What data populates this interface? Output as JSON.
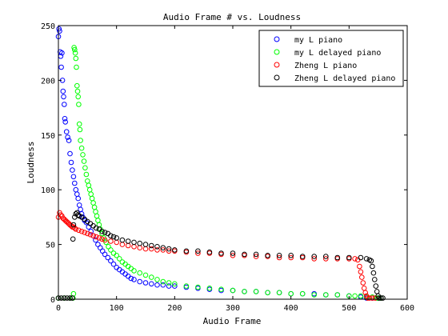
{
  "chart_data": {
    "type": "scatter",
    "title": "Audio Frame # vs. Loudness",
    "xlabel": "Audio Frame",
    "ylabel": "Loudness",
    "xlim": [
      0,
      600
    ],
    "ylim": [
      0,
      250
    ],
    "xticks": [
      0,
      100,
      200,
      300,
      400,
      500,
      600
    ],
    "yticks": [
      0,
      50,
      100,
      150,
      200,
      250
    ],
    "marker": "circle-open",
    "legend_position": "top-right",
    "series": [
      {
        "name": "my L piano",
        "color": "#0000ff",
        "points": [
          [
            0,
            240
          ],
          [
            1,
            247
          ],
          [
            2,
            245
          ],
          [
            3,
            226
          ],
          [
            4,
            222
          ],
          [
            5,
            212
          ],
          [
            6,
            225
          ],
          [
            7,
            200
          ],
          [
            8,
            190
          ],
          [
            9,
            185
          ],
          [
            10,
            178
          ],
          [
            11,
            165
          ],
          [
            12,
            162
          ],
          [
            14,
            153
          ],
          [
            16,
            148
          ],
          [
            18,
            145
          ],
          [
            20,
            133
          ],
          [
            22,
            125
          ],
          [
            24,
            118
          ],
          [
            26,
            112
          ],
          [
            28,
            106
          ],
          [
            30,
            100
          ],
          [
            32,
            96
          ],
          [
            34,
            92
          ],
          [
            36,
            86
          ],
          [
            38,
            82
          ],
          [
            40,
            78
          ],
          [
            42,
            75
          ],
          [
            45,
            72
          ],
          [
            48,
            70
          ],
          [
            52,
            66
          ],
          [
            56,
            62
          ],
          [
            60,
            58
          ],
          [
            64,
            54
          ],
          [
            68,
            50
          ],
          [
            72,
            47
          ],
          [
            76,
            44
          ],
          [
            80,
            41
          ],
          [
            85,
            38
          ],
          [
            90,
            35
          ],
          [
            95,
            32
          ],
          [
            100,
            29
          ],
          [
            105,
            27
          ],
          [
            110,
            25
          ],
          [
            115,
            23
          ],
          [
            120,
            21
          ],
          [
            125,
            19
          ],
          [
            130,
            18
          ],
          [
            140,
            16
          ],
          [
            150,
            15
          ],
          [
            160,
            14
          ],
          [
            170,
            13
          ],
          [
            180,
            13
          ],
          [
            190,
            12
          ],
          [
            200,
            12
          ],
          [
            220,
            11
          ],
          [
            240,
            10
          ],
          [
            260,
            9
          ],
          [
            280,
            8
          ],
          [
            300,
            8
          ],
          [
            320,
            7
          ],
          [
            340,
            7
          ],
          [
            360,
            6
          ],
          [
            380,
            6
          ],
          [
            400,
            5
          ],
          [
            420,
            5
          ],
          [
            440,
            5
          ],
          [
            460,
            4
          ],
          [
            480,
            4
          ],
          [
            500,
            3
          ],
          [
            520,
            2
          ],
          [
            530,
            1
          ],
          [
            540,
            1
          ],
          [
            550,
            1
          ]
        ]
      },
      {
        "name": "my L delayed piano",
        "color": "#00ff00",
        "points": [
          [
            0,
            1
          ],
          [
            10,
            1
          ],
          [
            20,
            1
          ],
          [
            25,
            1
          ],
          [
            26,
            5
          ],
          [
            27,
            230
          ],
          [
            28,
            228
          ],
          [
            29,
            225
          ],
          [
            30,
            220
          ],
          [
            31,
            212
          ],
          [
            32,
            195
          ],
          [
            33,
            190
          ],
          [
            34,
            185
          ],
          [
            35,
            178
          ],
          [
            36,
            160
          ],
          [
            37,
            155
          ],
          [
            38,
            145
          ],
          [
            40,
            138
          ],
          [
            42,
            132
          ],
          [
            44,
            126
          ],
          [
            46,
            120
          ],
          [
            48,
            114
          ],
          [
            50,
            108
          ],
          [
            52,
            104
          ],
          [
            54,
            100
          ],
          [
            56,
            96
          ],
          [
            58,
            92
          ],
          [
            60,
            88
          ],
          [
            62,
            84
          ],
          [
            64,
            80
          ],
          [
            66,
            76
          ],
          [
            68,
            72
          ],
          [
            70,
            68
          ],
          [
            72,
            64
          ],
          [
            75,
            60
          ],
          [
            78,
            56
          ],
          [
            82,
            52
          ],
          [
            86,
            48
          ],
          [
            90,
            45
          ],
          [
            95,
            42
          ],
          [
            100,
            40
          ],
          [
            105,
            37
          ],
          [
            110,
            34
          ],
          [
            115,
            32
          ],
          [
            120,
            30
          ],
          [
            125,
            28
          ],
          [
            130,
            26
          ],
          [
            140,
            24
          ],
          [
            150,
            22
          ],
          [
            160,
            20
          ],
          [
            170,
            18
          ],
          [
            180,
            16
          ],
          [
            190,
            15
          ],
          [
            200,
            14
          ],
          [
            220,
            12
          ],
          [
            240,
            11
          ],
          [
            260,
            10
          ],
          [
            280,
            9
          ],
          [
            300,
            8
          ],
          [
            320,
            7
          ],
          [
            340,
            7
          ],
          [
            360,
            6
          ],
          [
            380,
            6
          ],
          [
            400,
            5
          ],
          [
            420,
            5
          ],
          [
            440,
            4
          ],
          [
            460,
            4
          ],
          [
            480,
            4
          ],
          [
            500,
            3
          ],
          [
            510,
            3
          ],
          [
            520,
            3
          ],
          [
            530,
            2
          ],
          [
            540,
            2
          ],
          [
            548,
            1
          ],
          [
            550,
            1
          ],
          [
            555,
            1
          ]
        ]
      },
      {
        "name": "Zheng L piano",
        "color": "#ff0000",
        "points": [
          [
            0,
            75
          ],
          [
            2,
            79
          ],
          [
            4,
            77
          ],
          [
            6,
            76
          ],
          [
            8,
            74
          ],
          [
            10,
            73
          ],
          [
            12,
            72
          ],
          [
            14,
            71
          ],
          [
            16,
            70
          ],
          [
            18,
            69
          ],
          [
            20,
            68
          ],
          [
            22,
            67
          ],
          [
            24,
            66
          ],
          [
            26,
            66
          ],
          [
            28,
            65
          ],
          [
            30,
            64
          ],
          [
            35,
            63
          ],
          [
            40,
            62
          ],
          [
            45,
            61
          ],
          [
            50,
            60
          ],
          [
            55,
            59
          ],
          [
            60,
            58
          ],
          [
            65,
            57
          ],
          [
            70,
            56
          ],
          [
            75,
            55
          ],
          [
            80,
            54
          ],
          [
            90,
            53
          ],
          [
            100,
            52
          ],
          [
            110,
            50
          ],
          [
            120,
            49
          ],
          [
            130,
            48
          ],
          [
            140,
            47
          ],
          [
            150,
            46
          ],
          [
            160,
            46
          ],
          [
            170,
            45
          ],
          [
            180,
            45
          ],
          [
            190,
            44
          ],
          [
            200,
            44
          ],
          [
            220,
            43
          ],
          [
            240,
            42
          ],
          [
            260,
            42
          ],
          [
            280,
            41
          ],
          [
            300,
            40
          ],
          [
            320,
            40
          ],
          [
            340,
            39
          ],
          [
            360,
            39
          ],
          [
            380,
            38
          ],
          [
            400,
            38
          ],
          [
            420,
            38
          ],
          [
            440,
            37
          ],
          [
            460,
            37
          ],
          [
            480,
            37
          ],
          [
            500,
            37
          ],
          [
            510,
            37
          ],
          [
            515,
            36
          ],
          [
            518,
            30
          ],
          [
            520,
            25
          ],
          [
            522,
            20
          ],
          [
            524,
            15
          ],
          [
            526,
            10
          ],
          [
            528,
            6
          ],
          [
            530,
            3
          ],
          [
            532,
            1
          ],
          [
            535,
            1
          ],
          [
            540,
            1
          ],
          [
            545,
            1
          ]
        ]
      },
      {
        "name": "Zheng L delayed piano",
        "color": "#000000",
        "points": [
          [
            0,
            1
          ],
          [
            5,
            1
          ],
          [
            10,
            1
          ],
          [
            15,
            1
          ],
          [
            20,
            1
          ],
          [
            24,
            1
          ],
          [
            25,
            55
          ],
          [
            26,
            68
          ],
          [
            28,
            75
          ],
          [
            30,
            78
          ],
          [
            32,
            79
          ],
          [
            34,
            77
          ],
          [
            36,
            76
          ],
          [
            40,
            75
          ],
          [
            45,
            73
          ],
          [
            50,
            71
          ],
          [
            55,
            69
          ],
          [
            60,
            67
          ],
          [
            65,
            65
          ],
          [
            70,
            64
          ],
          [
            75,
            62
          ],
          [
            80,
            61
          ],
          [
            85,
            60
          ],
          [
            90,
            58
          ],
          [
            95,
            57
          ],
          [
            100,
            56
          ],
          [
            110,
            54
          ],
          [
            120,
            53
          ],
          [
            130,
            52
          ],
          [
            140,
            51
          ],
          [
            150,
            50
          ],
          [
            160,
            49
          ],
          [
            170,
            48
          ],
          [
            180,
            47
          ],
          [
            190,
            46
          ],
          [
            200,
            45
          ],
          [
            220,
            44
          ],
          [
            240,
            44
          ],
          [
            260,
            43
          ],
          [
            280,
            42
          ],
          [
            300,
            42
          ],
          [
            320,
            41
          ],
          [
            340,
            41
          ],
          [
            360,
            40
          ],
          [
            380,
            40
          ],
          [
            400,
            40
          ],
          [
            420,
            39
          ],
          [
            440,
            39
          ],
          [
            460,
            39
          ],
          [
            480,
            38
          ],
          [
            500,
            38
          ],
          [
            520,
            38
          ],
          [
            530,
            37
          ],
          [
            535,
            36
          ],
          [
            538,
            35
          ],
          [
            540,
            30
          ],
          [
            542,
            24
          ],
          [
            544,
            18
          ],
          [
            546,
            12
          ],
          [
            548,
            7
          ],
          [
            550,
            3
          ],
          [
            552,
            1
          ],
          [
            555,
            1
          ],
          [
            558,
            1
          ]
        ]
      }
    ]
  }
}
